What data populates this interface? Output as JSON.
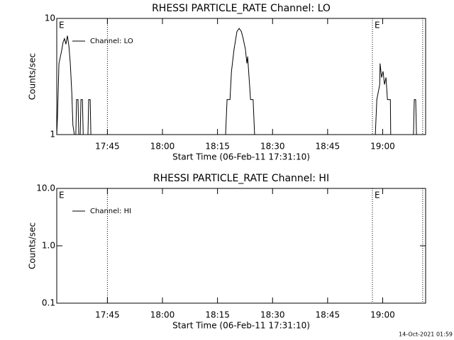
{
  "chart_data": [
    {
      "type": "line",
      "title": "RHESSI PARTICLE_RATE Channel: LO",
      "xlabel": "Start Time (06-Feb-11 17:31:10)",
      "ylabel": "Counts/sec",
      "log": true,
      "ylim": [
        1,
        10
      ],
      "yticks": [
        1,
        10
      ],
      "xlim": [
        1051.2,
        1151.7
      ],
      "xticks": [
        {
          "value": 1065,
          "label": "17:45"
        },
        {
          "value": 1080,
          "label": "18:00"
        },
        {
          "value": 1095,
          "label": "18:15"
        },
        {
          "value": 1110,
          "label": "18:30"
        },
        {
          "value": 1125,
          "label": "18:45"
        },
        {
          "value": 1140,
          "label": "19:00"
        }
      ],
      "vlines": [
        1065,
        1137.2,
        1150.9
      ],
      "annotations": [
        {
          "text": "E",
          "x": 1051.2
        },
        {
          "text": "E",
          "x": 1137.2
        }
      ],
      "legend": "upper left",
      "series": [
        {
          "name": "Channel: LO",
          "color": "#000000",
          "x": [
            1051.2,
            1051.4,
            1051.8,
            1052.2,
            1052.6,
            1052.9,
            1053.3,
            1053.7,
            1054.1,
            1054.5,
            1054.9,
            1055.3,
            1055.6,
            1055.8,
            1056.0,
            1056.4,
            1056.6,
            1057.0,
            1057.2,
            1057.6,
            1057.8,
            1058.2,
            1058.4,
            1059.7,
            1059.9,
            1060.3,
            1060.5,
            1097.2,
            1097.6,
            1098.4,
            1098.8,
            1099.5,
            1100.3,
            1100.9,
            1101.5,
            1102.0,
            1102.6,
            1103.0,
            1103.2,
            1103.6,
            1104.0,
            1104.7,
            1105.1,
            1138.0,
            1138.4,
            1139.2,
            1139.3,
            1139.7,
            1140.1,
            1140.5,
            1140.9,
            1141.3,
            1142.1,
            1142.2,
            1148.4,
            1148.6,
            1149.0,
            1149.2
          ],
          "values": [
            1,
            1.4,
            4.1,
            4.7,
            5.4,
            6.2,
            6.7,
            6.0,
            7.1,
            5.8,
            4.1,
            2.3,
            1.2,
            1.1,
            1,
            1,
            2.0,
            2.0,
            1,
            1,
            2.0,
            2.0,
            1,
            1,
            2.0,
            2.0,
            1,
            1,
            2.0,
            2.0,
            3.5,
            5.4,
            7.7,
            8.2,
            7.7,
            6.7,
            5.4,
            4.1,
            4.7,
            3.1,
            2.0,
            2.0,
            1,
            1,
            2.0,
            2.7,
            4.1,
            3.1,
            3.5,
            2.7,
            3.1,
            2.0,
            2.0,
            1,
            1,
            2.0,
            2.0,
            1
          ]
        }
      ]
    },
    {
      "type": "line",
      "title": "RHESSI PARTICLE_RATE Channel: HI",
      "xlabel": "Start Time (06-Feb-11 17:31:10)",
      "ylabel": "Counts/sec",
      "log": true,
      "ylim": [
        0.1,
        10
      ],
      "yticks": [
        0.1,
        {
          "value": 1,
          "label": "1.0"
        },
        {
          "value": 10,
          "label": "10.0"
        }
      ],
      "xlim": [
        1051.2,
        1151.7
      ],
      "xticks": [
        {
          "value": 1065,
          "label": "17:45"
        },
        {
          "value": 1080,
          "label": "18:00"
        },
        {
          "value": 1095,
          "label": "18:15"
        },
        {
          "value": 1110,
          "label": "18:30"
        },
        {
          "value": 1125,
          "label": "18:45"
        },
        {
          "value": 1140,
          "label": "19:00"
        }
      ],
      "vlines": [
        1065,
        1137.2,
        1150.9
      ],
      "annotations": [
        {
          "text": "E",
          "x": 1051.2
        },
        {
          "text": "E",
          "x": 1137.2
        }
      ],
      "legend": "upper left",
      "series": [
        {
          "name": "Channel: HI",
          "color": "#000000",
          "x": [],
          "values": []
        }
      ]
    }
  ],
  "timestamp": "14-Oct-2021 01:59"
}
